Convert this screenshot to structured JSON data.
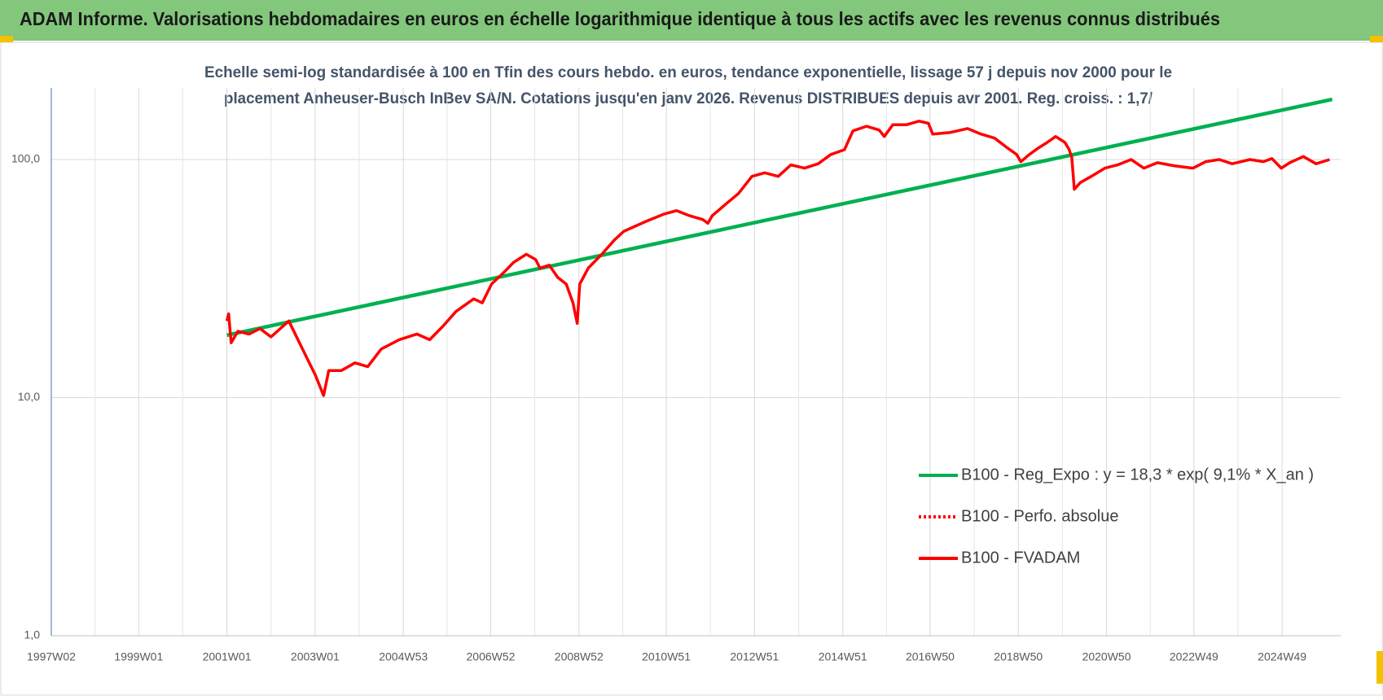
{
  "chart_data": {
    "type": "line",
    "title": "ADAM Informe. Valorisations hebdomadaires en euros en échelle logarithmique identique à tous les actifs avec les revenus connus distribués",
    "subtitle": [
      "Echelle semi-log standardisée à 100 en Tfin des cours hebdo. en euros, tendance exponentielle, lissage 57 j depuis nov 2000 pour le",
      "placement Anheuser-Busch InBev SA/N. Cotations jusqu'en janv 2026. Revenus DISTRIBUES depuis avr 2001. Reg. croiss. : 1,7/"
    ],
    "log_scale": true,
    "grid": true,
    "legend": "right",
    "ylim": [
      1,
      200
    ],
    "yticks": [
      {
        "value": 1,
        "label": "1,0"
      },
      {
        "value": 10,
        "label": "10,0"
      },
      {
        "value": 100,
        "label": "100,0"
      }
    ],
    "xlim": [
      "1997W02",
      "2026W14"
    ],
    "xticks": [
      "1997W02",
      "1999W01",
      "2001W01",
      "2003W01",
      "2004W53",
      "2006W52",
      "2008W52",
      "2010W51",
      "2012W51",
      "2014W51",
      "2016W50",
      "2018W50",
      "2020W50",
      "2022W49",
      "2024W49"
    ],
    "series": [
      {
        "name": "B100 - Reg_Expo : y = 18,3 * exp( 9,1% *  X_an )",
        "color": "#00b050",
        "style": "solid",
        "x": [
          "2001W01",
          "2026W04"
        ],
        "values": [
          18.3,
          179
        ]
      },
      {
        "name": "B100 - Perfo. absolue",
        "color": "#ff0000",
        "style": "dotted",
        "x": [],
        "values": []
      },
      {
        "name": "B100 - FVADAM",
        "color": "#ff0000",
        "style": "solid",
        "x": [
          "2001W01",
          "2001W03",
          "2001W06",
          "2001W14",
          "2001W27",
          "2001W40",
          "2002W01",
          "2002W22",
          "2002W40",
          "2003W01",
          "2003W11",
          "2003W17",
          "2003W32",
          "2003W48",
          "2004W11",
          "2004W27",
          "2004W48",
          "2005W17",
          "2005W32",
          "2005W48",
          "2006W11",
          "2006W32",
          "2006W42",
          "2007W01",
          "2007W17",
          "2007W27",
          "2007W42",
          "2008W01",
          "2008W06",
          "2008W17",
          "2008W27",
          "2008W37",
          "2008W45",
          "2008W50",
          "2009W01",
          "2009W11",
          "2009W27",
          "2009W42",
          "2010W01",
          "2010W27",
          "2010W48",
          "2011W11",
          "2011W27",
          "2011W42",
          "2011W48",
          "2012W01",
          "2012W17",
          "2012W32",
          "2012W48",
          "2013W11",
          "2013W27",
          "2013W42",
          "2014W06",
          "2014W22",
          "2014W37",
          "2015W01",
          "2015W11",
          "2015W27",
          "2015W42",
          "2015W48",
          "2016W06",
          "2016W22",
          "2016W37",
          "2016W48",
          "2017W01",
          "2017W22",
          "2017W42",
          "2018W06",
          "2018W22",
          "2018W37",
          "2018W48",
          "2019W01",
          "2019W11",
          "2019W22",
          "2019W32",
          "2019W42",
          "2020W01",
          "2020W06",
          "2020W09",
          "2020W12",
          "2020W19",
          "2020W32",
          "2020W48",
          "2021W11",
          "2021W27",
          "2021W42",
          "2022W06",
          "2022W27",
          "2022W48",
          "2023W11",
          "2023W27",
          "2023W42",
          "2024W11",
          "2024W27",
          "2024W37",
          "2024W48",
          "2025W06",
          "2025W22",
          "2025W37",
          "2026W01"
        ],
        "values": [
          21,
          22.5,
          17,
          19,
          18.5,
          19.5,
          18,
          21,
          15.5,
          12.5,
          10.2,
          13,
          13,
          14,
          13.5,
          16,
          17.5,
          18.5,
          17.5,
          20,
          23,
          26,
          25,
          30,
          34,
          37,
          40,
          38,
          35,
          36,
          32,
          30,
          25,
          20.5,
          30,
          35,
          40,
          46,
          50,
          55,
          59,
          61,
          58,
          56,
          54,
          58,
          65,
          72,
          85,
          88,
          85,
          95,
          92,
          96,
          105,
          110,
          132,
          138,
          133,
          125,
          140,
          140,
          145,
          142,
          128,
          130,
          135,
          128,
          123,
          112,
          105,
          98,
          105,
          112,
          118,
          125,
          118,
          110,
          102,
          75,
          80,
          85,
          92,
          95,
          100,
          92,
          97,
          94,
          92,
          98,
          100,
          96,
          100,
          98,
          101,
          92,
          97,
          103,
          96,
          100
        ]
      }
    ]
  }
}
